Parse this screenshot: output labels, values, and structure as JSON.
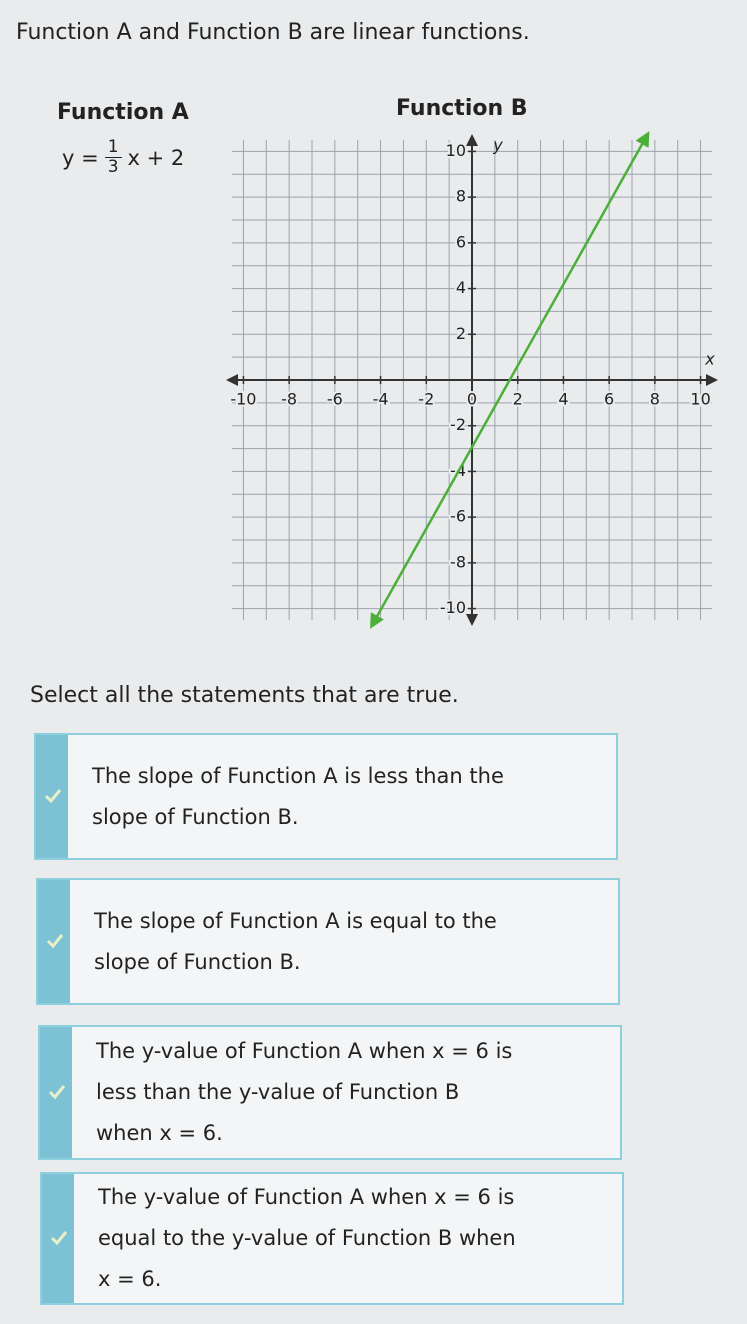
{
  "prompt": "Function A and Function B are linear functions.",
  "function_a": {
    "title": "Function A",
    "equation": {
      "lhs": "y =",
      "numerator": "1",
      "denominator": "3",
      "rhs": "x + 2"
    }
  },
  "function_b": {
    "title": "Function B",
    "chart_data": {
      "type": "line",
      "x_label": "x",
      "y_label": "y",
      "xlim": [
        -10.5,
        10.5
      ],
      "ylim": [
        -10.5,
        10.5
      ],
      "xticks": [
        -10,
        -8,
        -6,
        -4,
        -2,
        0,
        2,
        4,
        6,
        8,
        10
      ],
      "yticks": [
        10,
        8,
        6,
        4,
        2,
        -2,
        -4,
        -6,
        -8,
        -10
      ],
      "grid": true,
      "series": [
        {
          "color": "#4caf3a",
          "x": [
            -4.3,
            7.6
          ],
          "values": [
            -10.6,
            10.6
          ]
        }
      ]
    }
  },
  "question": "Select all the statements that are true.",
  "options": [
    {
      "lines": [
        "The slope of Function A is less than the",
        "slope of Function B."
      ]
    },
    {
      "lines": [
        "The slope of Function A is equal to the",
        "slope of Function B."
      ]
    },
    {
      "lines": [
        "The y-value of Function A when x = 6 is",
        "less than the y-value of Function B",
        "when x = 6."
      ]
    },
    {
      "lines": [
        "The y-value of Function A when x = 6 is",
        "equal to the y-value of Function B when",
        "x = 6."
      ]
    }
  ]
}
